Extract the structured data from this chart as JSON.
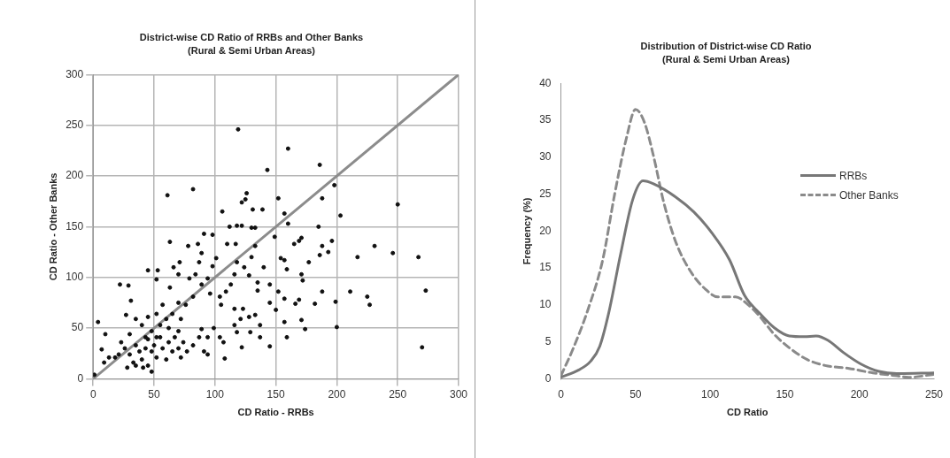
{
  "chart_data": [
    {
      "type": "scatter",
      "title": "District-wise CD Ratio of RRBs and Other Banks",
      "subtitle": "(Rural & Semi Urban Areas)",
      "xlabel": "CD Ratio - RRBs",
      "ylabel": "CD Ratio - Other Banks",
      "xlim": [
        0,
        300
      ],
      "ylim": [
        0,
        300
      ],
      "xticks": [
        0,
        50,
        100,
        150,
        200,
        250,
        300
      ],
      "yticks": [
        0,
        50,
        100,
        150,
        200,
        250,
        300
      ],
      "grid": true,
      "legend": false,
      "marker": "circle",
      "series": [
        {
          "type": "scatter",
          "color": "#111111",
          "x": [
            119,
            160,
            143,
            186,
            61,
            82,
            250,
            198,
            203,
            152,
            188,
            106,
            126,
            122,
            125,
            131,
            139,
            157,
            160,
            185,
            112,
            118,
            122,
            130,
            133,
            149,
            171,
            169,
            165,
            196,
            231,
            246,
            267,
            217,
            193,
            188,
            186,
            63,
            91,
            98,
            273,
            270,
            211,
            225,
            227,
            188,
            199,
            200,
            182,
            174,
            171,
            159,
            145,
            122,
            108,
            22,
            29,
            4,
            10,
            7,
            31,
            45,
            53,
            52,
            152,
            150,
            157,
            157,
            166,
            169,
            172,
            171,
            177,
            159,
            157,
            154,
            145,
            145,
            140,
            135,
            135,
            130,
            133,
            124,
            128,
            118,
            116,
            113,
            109,
            104,
            105,
            110,
            117,
            101,
            98,
            89,
            87,
            78,
            86,
            71,
            66,
            70,
            63,
            79,
            84,
            89,
            94,
            96,
            82,
            76,
            70,
            65,
            57,
            52,
            45,
            40,
            35,
            27,
            60,
            72,
            89,
            94,
            99,
            104,
            107,
            116,
            121,
            123,
            128,
            133,
            137,
            129,
            137,
            116,
            118,
            26,
            30,
            35,
            38,
            40,
            43,
            45,
            48,
            50,
            52,
            55,
            57,
            60,
            62,
            65,
            67,
            70,
            72,
            74,
            77,
            33,
            35,
            45,
            48,
            41,
            28,
            21,
            18,
            23,
            30,
            82,
            87,
            91,
            94,
            70,
            62,
            55,
            48,
            43,
            52,
            1,
            9,
            13
          ],
          "values": [
            246,
            227,
            206,
            211,
            181,
            187,
            172,
            191,
            161,
            178,
            178,
            165,
            183,
            174,
            177,
            167,
            167,
            163,
            153,
            150,
            150,
            151,
            151,
            149,
            149,
            140,
            139,
            136,
            133,
            136,
            131,
            124,
            120,
            120,
            125,
            131,
            122,
            135,
            143,
            142,
            87,
            31,
            86,
            81,
            73,
            86,
            76,
            51,
            74,
            49,
            58,
            41,
            32,
            31,
            20,
            93,
            92,
            56,
            44,
            29,
            77,
            107,
            107,
            98,
            86,
            68,
            56,
            79,
            74,
            78,
            97,
            103,
            115,
            108,
            117,
            119,
            93,
            75,
            110,
            87,
            95,
            120,
            131,
            110,
            102,
            115,
            103,
            93,
            86,
            81,
            73,
            133,
            133,
            119,
            111,
            124,
            115,
            131,
            133,
            115,
            110,
            103,
            90,
            99,
            103,
            93,
            99,
            84,
            81,
            73,
            75,
            64,
            73,
            64,
            61,
            53,
            59,
            63,
            59,
            59,
            49,
            41,
            50,
            41,
            36,
            69,
            59,
            69,
            61,
            63,
            53,
            46,
            41,
            53,
            46,
            30,
            24,
            33,
            27,
            19,
            30,
            39,
            27,
            33,
            21,
            41,
            30,
            19,
            36,
            27,
            41,
            30,
            21,
            36,
            27,
            16,
            13,
            13,
            7,
            11,
            11,
            24,
            21,
            36,
            44,
            33,
            41,
            27,
            24,
            47,
            50,
            53,
            47,
            41,
            41,
            4,
            16,
            21
          ]
        },
        {
          "type": "line",
          "color": "#8c8c8c",
          "x": [
            0,
            300
          ],
          "values": [
            0,
            300
          ],
          "marker": "none"
        }
      ]
    },
    {
      "type": "line",
      "title": "Distribution of District-wise CD Ratio",
      "subtitle": "(Rural & Semi Urban Areas)",
      "xlabel": "CD Ratio",
      "ylabel": "Frequency (%)",
      "xlim": [
        0,
        250
      ],
      "ylim": [
        0,
        40
      ],
      "xticks": [
        0,
        50,
        100,
        150,
        200,
        250
      ],
      "yticks": [
        0,
        5,
        10,
        15,
        20,
        25,
        30,
        35,
        40
      ],
      "grid": false,
      "legend": "right",
      "marker": "none",
      "series": [
        {
          "name": "RRBs",
          "color": "#777777",
          "line_style": "solid",
          "x": [
            0,
            12,
            20,
            26,
            32,
            40,
            48,
            55,
            62,
            77,
            89,
            101,
            113,
            123,
            133,
            143,
            153,
            163,
            171,
            179,
            189,
            201,
            213,
            225,
            250
          ],
          "values": [
            0.2,
            1.2,
            2.4,
            4.4,
            8.9,
            16.9,
            24.2,
            26.8,
            26.4,
            24.6,
            22.6,
            19.8,
            16.1,
            11.3,
            8.9,
            6.9,
            5.8,
            5.7,
            5.8,
            5.2,
            3.6,
            2.0,
            1.0,
            0.7,
            0.8
          ]
        },
        {
          "name": "Other Banks",
          "color": "#8a8a8a",
          "line_style": "dashed",
          "x": [
            0,
            8,
            18,
            28,
            36,
            44,
            50,
            56,
            62,
            69,
            77,
            87,
            97,
            105,
            117,
            125,
            133,
            143,
            153,
            165,
            177,
            193,
            209,
            225,
            233,
            250
          ],
          "values": [
            0.4,
            4.0,
            9.3,
            16.1,
            25.0,
            32.7,
            36.5,
            34.7,
            30.2,
            23.8,
            18.5,
            14.5,
            12.1,
            11.1,
            11.1,
            10.1,
            8.5,
            6.0,
            4.2,
            2.6,
            1.8,
            1.4,
            0.8,
            0.4,
            0.2,
            0.6
          ]
        }
      ]
    }
  ]
}
